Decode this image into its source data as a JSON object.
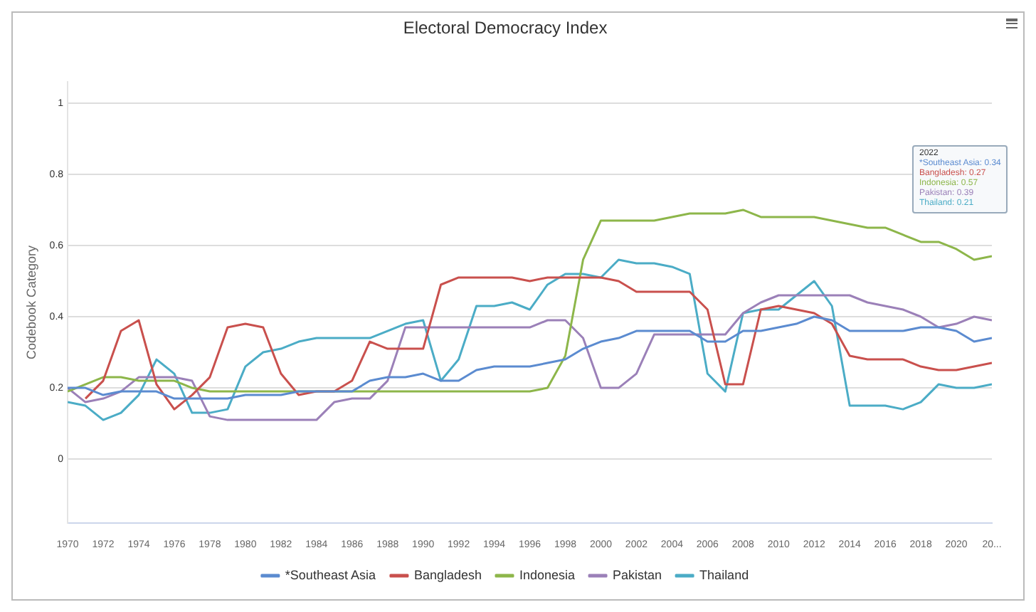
{
  "chart_data": {
    "type": "line",
    "title": "Electoral Democracy Index",
    "ylabel": "Codebook Category",
    "x": [
      1970,
      1971,
      1972,
      1973,
      1974,
      1975,
      1976,
      1977,
      1978,
      1979,
      1980,
      1981,
      1982,
      1983,
      1984,
      1985,
      1986,
      1987,
      1988,
      1989,
      1990,
      1991,
      1992,
      1993,
      1994,
      1995,
      1996,
      1997,
      1998,
      1999,
      2000,
      2001,
      2002,
      2003,
      2004,
      2005,
      2006,
      2007,
      2008,
      2009,
      2010,
      2011,
      2012,
      2013,
      2014,
      2015,
      2016,
      2017,
      2018,
      2019,
      2020,
      2021,
      2022
    ],
    "xlim": [
      1970,
      2022
    ],
    "xticks": [
      1970,
      1972,
      1974,
      1976,
      1978,
      1980,
      1982,
      1984,
      1986,
      1988,
      1990,
      1992,
      1994,
      1996,
      1998,
      2000,
      2002,
      2004,
      2006,
      2008,
      2010,
      2012,
      2014,
      2016,
      2018,
      2020,
      {
        "value": 2022,
        "label": "20..."
      }
    ],
    "ylim": [
      -0.18,
      1.06
    ],
    "yticks": [
      0,
      0.2,
      0.4,
      0.6,
      0.8,
      1
    ],
    "grid": "y",
    "legend": "bottom",
    "marker": "none",
    "line_style": "solid",
    "series": [
      {
        "name": "*Southeast Asia",
        "color": "#5b8bd0",
        "values": [
          0.2,
          0.2,
          0.18,
          0.19,
          0.19,
          0.19,
          0.17,
          0.17,
          0.17,
          0.17,
          0.18,
          0.18,
          0.18,
          0.19,
          0.19,
          0.19,
          0.19,
          0.22,
          0.23,
          0.23,
          0.24,
          0.22,
          0.22,
          0.25,
          0.26,
          0.26,
          0.26,
          0.27,
          0.28,
          0.31,
          0.33,
          0.34,
          0.36,
          0.36,
          0.36,
          0.36,
          0.33,
          0.33,
          0.36,
          0.36,
          0.37,
          0.38,
          0.4,
          0.39,
          0.36,
          0.36,
          0.36,
          0.36,
          0.37,
          0.37,
          0.36,
          0.33,
          0.34
        ]
      },
      {
        "name": "Bangladesh",
        "color": "#c9504d",
        "values": [
          null,
          0.17,
          0.22,
          0.36,
          0.39,
          0.21,
          0.14,
          0.18,
          0.23,
          0.37,
          0.38,
          0.37,
          0.24,
          0.18,
          0.19,
          0.19,
          0.22,
          0.33,
          0.31,
          0.31,
          0.31,
          0.49,
          0.51,
          0.51,
          0.51,
          0.51,
          0.5,
          0.51,
          0.51,
          0.51,
          0.51,
          0.5,
          0.47,
          0.47,
          0.47,
          0.47,
          0.42,
          0.21,
          0.21,
          0.42,
          0.43,
          0.42,
          0.41,
          0.38,
          0.29,
          0.28,
          0.28,
          0.28,
          0.26,
          0.25,
          0.25,
          0.26,
          0.27
        ]
      },
      {
        "name": "Indonesia",
        "color": "#8db64a",
        "values": [
          0.19,
          0.21,
          0.23,
          0.23,
          0.22,
          0.22,
          0.22,
          0.2,
          0.19,
          0.19,
          0.19,
          0.19,
          0.19,
          0.19,
          0.19,
          0.19,
          0.19,
          0.19,
          0.19,
          0.19,
          0.19,
          0.19,
          0.19,
          0.19,
          0.19,
          0.19,
          0.19,
          0.2,
          0.29,
          0.56,
          0.67,
          0.67,
          0.67,
          0.67,
          0.68,
          0.69,
          0.69,
          0.69,
          0.7,
          0.68,
          0.68,
          0.68,
          0.68,
          0.67,
          0.66,
          0.65,
          0.65,
          0.63,
          0.61,
          0.61,
          0.59,
          0.56,
          0.57
        ]
      },
      {
        "name": "Pakistan",
        "color": "#9b80b8",
        "values": [
          0.2,
          0.16,
          0.17,
          0.19,
          0.23,
          0.23,
          0.23,
          0.22,
          0.12,
          0.11,
          0.11,
          0.11,
          0.11,
          0.11,
          0.11,
          0.16,
          0.17,
          0.17,
          0.22,
          0.37,
          0.37,
          0.37,
          0.37,
          0.37,
          0.37,
          0.37,
          0.37,
          0.39,
          0.39,
          0.34,
          0.2,
          0.2,
          0.24,
          0.35,
          0.35,
          0.35,
          0.35,
          0.35,
          0.41,
          0.44,
          0.46,
          0.46,
          0.46,
          0.46,
          0.46,
          0.44,
          0.43,
          0.42,
          0.4,
          0.37,
          0.38,
          0.4,
          0.39
        ]
      },
      {
        "name": "Thailand",
        "color": "#4bacc6",
        "values": [
          0.16,
          0.15,
          0.11,
          0.13,
          0.18,
          0.28,
          0.24,
          0.13,
          0.13,
          0.14,
          0.26,
          0.3,
          0.31,
          0.33,
          0.34,
          0.34,
          0.34,
          0.34,
          0.36,
          0.38,
          0.39,
          0.22,
          0.28,
          0.43,
          0.43,
          0.44,
          0.42,
          0.49,
          0.52,
          0.52,
          0.51,
          0.56,
          0.55,
          0.55,
          0.54,
          0.52,
          0.24,
          0.19,
          0.41,
          0.42,
          0.42,
          0.46,
          0.5,
          0.43,
          0.15,
          0.15,
          0.15,
          0.14,
          0.16,
          0.21,
          0.2,
          0.2,
          0.21
        ]
      }
    ],
    "annotations": [
      "2022",
      "*Southeast Asia: 0.34",
      "Bangladesh: 0.27",
      "Indonesia: 0.57",
      "Pakistan: 0.39",
      "Thailand: 0.21"
    ]
  }
}
